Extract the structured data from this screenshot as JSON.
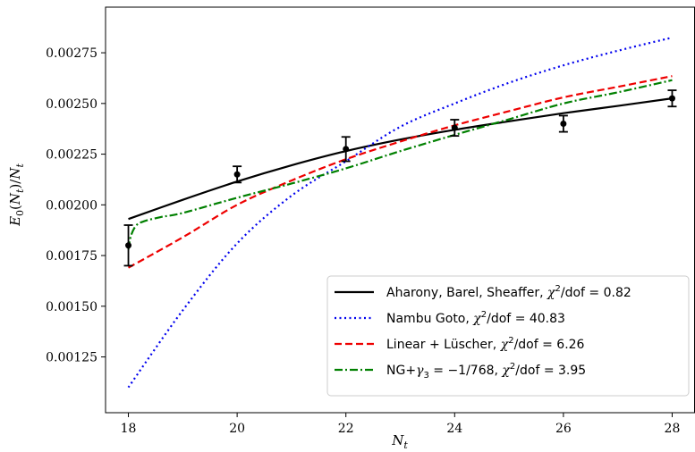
{
  "chart_data": {
    "type": "line",
    "xlabel": "N_t",
    "ylabel": "E_0(N_t)/N_t",
    "xlim": [
      17.58,
      28.42
    ],
    "ylim": [
      0.000975,
      0.002975
    ],
    "xticks": [
      18,
      20,
      22,
      24,
      26,
      28
    ],
    "yticks": [
      0.00125,
      0.0015,
      0.00175,
      0.002,
      0.00225,
      0.0025,
      0.00275
    ],
    "xtick_labels": [
      "18",
      "20",
      "22",
      "24",
      "26",
      "28"
    ],
    "ytick_labels": [
      "0.00125",
      "0.00150",
      "0.00175",
      "0.00200",
      "0.00225",
      "0.00250",
      "0.00275"
    ],
    "grid": false,
    "legend_position": "lower-right",
    "data_points": {
      "x": [
        18,
        20,
        22,
        24,
        26,
        28
      ],
      "y": [
        0.0018,
        0.00215,
        0.002275,
        0.00238,
        0.0024,
        0.002525
      ],
      "yerr": [
        0.0001,
        4e-05,
        6e-05,
        4e-05,
        4e-05,
        4e-05
      ],
      "color": "#000000"
    },
    "series": [
      {
        "name": "Aharony, Barel, Sheaffer, χ²/dof = 0.82",
        "style": "solid",
        "color": "#000000",
        "x": [
          18,
          19,
          20,
          21,
          22,
          23,
          24,
          25,
          26,
          27,
          28
        ],
        "y": [
          0.00193,
          0.002025,
          0.002115,
          0.002195,
          0.002265,
          0.002322,
          0.00237,
          0.002412,
          0.002452,
          0.002488,
          0.002525
        ]
      },
      {
        "name": "Nambu Goto, χ²/dof = 40.83",
        "style": "dotted",
        "color": "#0000ee",
        "x": [
          18,
          19,
          20,
          21,
          22,
          23,
          24,
          25,
          26,
          27,
          28
        ],
        "y": [
          0.0011,
          0.00148,
          0.00181,
          0.002045,
          0.002215,
          0.002385,
          0.0025,
          0.002602,
          0.002688,
          0.00276,
          0.002825
        ]
      },
      {
        "name": "Linear + Lüscher, χ²/dof = 6.26",
        "style": "dashed",
        "color": "#ee0000",
        "x": [
          18,
          19,
          20,
          21,
          22,
          23,
          24,
          25,
          26,
          27,
          28
        ],
        "y": [
          0.00169,
          0.00184,
          0.002,
          0.00212,
          0.002225,
          0.002312,
          0.002392,
          0.002462,
          0.00253,
          0.002582,
          0.002635
        ]
      },
      {
        "name": "NG+γ₃ = −1/768, χ²/dof = 3.95",
        "style": "dashdot",
        "color": "#008000",
        "x": [
          18,
          18.05,
          18.15,
          18.3,
          18.6,
          19,
          20,
          21,
          22,
          23,
          24,
          25,
          26,
          27,
          28
        ],
        "y": [
          0.00178,
          0.00185,
          0.0019,
          0.00192,
          0.00194,
          0.00196,
          0.002035,
          0.002105,
          0.00218,
          0.002265,
          0.002345,
          0.002422,
          0.0025,
          0.002555,
          0.002615
        ]
      }
    ]
  }
}
